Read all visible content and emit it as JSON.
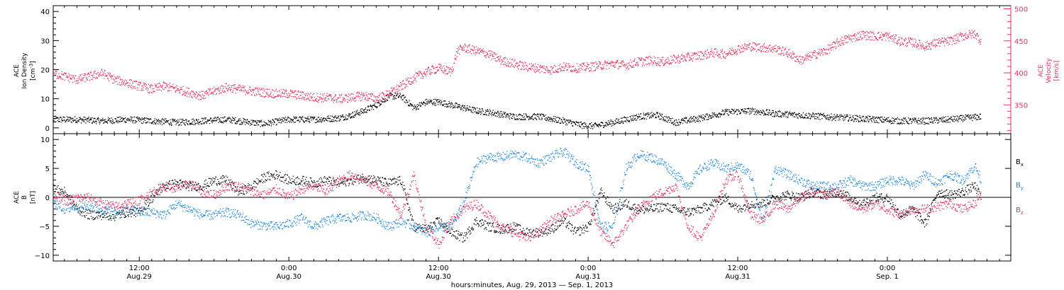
{
  "x_axis": {
    "title": "hours:minutes, Aug. 29, 2013 — Sep.  1, 2013",
    "ticks": [
      {
        "t_hours": 12,
        "time": "12:00",
        "date": "Aug.29"
      },
      {
        "t_hours": 24,
        "time": "0:00",
        "date": "Aug.30"
      },
      {
        "t_hours": 36,
        "time": "12:00",
        "date": "Aug.30"
      },
      {
        "t_hours": 48,
        "time": "0:00",
        "date": "Aug.31"
      },
      {
        "t_hours": 60,
        "time": "12:00",
        "date": "Aug.31"
      },
      {
        "t_hours": 72,
        "time": "0:00",
        "date": "Sep. 1"
      }
    ],
    "xlim_hours": [
      5.1,
      81.9
    ],
    "minor_tick_step_hours": 1
  },
  "chart_data": [
    {
      "type": "scatter",
      "panel": "top",
      "left_axis": {
        "label_lines": [
          "ACE",
          "Ion Density"
        ],
        "unit_prefix": "[cm",
        "unit_sup": "-3",
        "unit_suffix": "]",
        "ylim": [
          -2,
          42
        ],
        "ticks": [
          "0",
          "10",
          "20",
          "30",
          "40"
        ],
        "color": "#000000"
      },
      "right_axis": {
        "label_lines": [
          "ACE",
          "Velocity"
        ],
        "unit": "[km/s]",
        "ylim": [
          305,
          505
        ],
        "ticks": [
          "350",
          "400",
          "450",
          "500"
        ],
        "color": "#e8305c"
      },
      "x_unit": "hours since Aug. 29, 2013 00:00",
      "series": [
        {
          "key": "density",
          "axis": "left",
          "color": "#000000",
          "x": [
            5.1,
            7,
            9,
            11,
            13,
            15,
            17,
            19,
            21,
            22,
            24,
            26,
            28,
            29,
            30,
            31,
            32,
            33,
            34,
            35,
            36,
            37,
            38,
            39,
            40,
            42,
            44,
            46,
            47.5,
            48.5,
            50,
            52,
            53.5,
            55,
            57,
            59,
            61,
            63,
            65,
            67,
            69,
            71,
            73,
            75,
            77,
            79.5
          ],
          "y": [
            3,
            3,
            2.5,
            3,
            2.5,
            2,
            2.5,
            3,
            2,
            1.5,
            3,
            3,
            3.5,
            4.5,
            6,
            8,
            11,
            11,
            7,
            9,
            9,
            8,
            7,
            6,
            5.5,
            4,
            4,
            2.5,
            1,
            0.8,
            2,
            4,
            4.5,
            2,
            3.5,
            5.5,
            6,
            5,
            4.5,
            4,
            3.5,
            3,
            2.5,
            2.5,
            3,
            4
          ]
        },
        {
          "key": "velocity",
          "axis": "right",
          "color": "#e8305c",
          "x": [
            5.1,
            6,
            7,
            8,
            9,
            10,
            11,
            12,
            13,
            14,
            15,
            16,
            17,
            18,
            19,
            20,
            21,
            22,
            23,
            24,
            25,
            26,
            27,
            28,
            29,
            30,
            31,
            32,
            33,
            34,
            35,
            36,
            37,
            37.5,
            38,
            39,
            40,
            41,
            42,
            43,
            44,
            45,
            46,
            47,
            48,
            49,
            50,
            51,
            52,
            53,
            54,
            55,
            56,
            57,
            58,
            59,
            60,
            61,
            62,
            63,
            64,
            65,
            66,
            67,
            67.5,
            68,
            69,
            70,
            71,
            72,
            73,
            74,
            75,
            76,
            77,
            78,
            79,
            79.5
          ],
          "y": [
            400,
            395,
            390,
            395,
            400,
            390,
            385,
            380,
            375,
            380,
            375,
            370,
            365,
            372,
            378,
            375,
            372,
            370,
            368,
            368,
            365,
            362,
            362,
            360,
            362,
            365,
            360,
            368,
            380,
            392,
            402,
            408,
            402,
            435,
            440,
            435,
            430,
            420,
            415,
            410,
            408,
            405,
            410,
            408,
            410,
            412,
            415,
            412,
            418,
            420,
            418,
            422,
            425,
            428,
            432,
            430,
            438,
            442,
            440,
            438,
            432,
            420,
            428,
            435,
            440,
            448,
            455,
            460,
            458,
            458,
            450,
            448,
            442,
            448,
            450,
            458,
            462,
            450
          ]
        }
      ]
    },
    {
      "type": "scatter",
      "panel": "bottom",
      "axis": {
        "label_lines": [
          "ACE",
          "B"
        ],
        "unit": "[nT]",
        "ylim": [
          -11,
          11
        ],
        "ticks": [
          "10",
          "5",
          "0",
          "−5",
          "−10"
        ],
        "zero_line": true
      },
      "x_unit": "hours since Aug. 29, 2013 00:00",
      "legend": [
        {
          "base": "B",
          "sub": "x",
          "color": "#000000"
        },
        {
          "base": "B",
          "sub": "y",
          "color": "#1e88e5"
        },
        {
          "base": "B",
          "sub": "z",
          "color": "#e8305c"
        }
      ],
      "series": [
        {
          "key": "Bx",
          "color": "#000000",
          "x": [
            5.1,
            6,
            7,
            8,
            9,
            10,
            11,
            12,
            13,
            14,
            15,
            16,
            17,
            18,
            19,
            20,
            21,
            22,
            23,
            24,
            25,
            26,
            27,
            28,
            29,
            30,
            31,
            32,
            33,
            34,
            35,
            36,
            37,
            38,
            39,
            40,
            41,
            42,
            43,
            44,
            45,
            46,
            47,
            48,
            49,
            50,
            51,
            52,
            53,
            54,
            55,
            56,
            57,
            58,
            59,
            60,
            61,
            62,
            63,
            64,
            65,
            66,
            67,
            68,
            69,
            70,
            71,
            72,
            73,
            74,
            75,
            76,
            77,
            78,
            79,
            79.5
          ],
          "y": [
            1.5,
            1,
            -2,
            -3,
            -3,
            -3.2,
            -2.5,
            -2.5,
            0,
            2,
            2.5,
            2,
            2,
            3,
            3,
            1,
            2,
            3.5,
            4,
            3,
            3,
            2.5,
            3,
            2.5,
            3,
            3.5,
            3,
            2.5,
            3,
            -5,
            -5.5,
            -4,
            -6,
            -7,
            -4,
            -5,
            -5.5,
            -5,
            -6,
            -6,
            -5.5,
            -4,
            -6,
            -5,
            1,
            -2,
            -1,
            -2,
            -2,
            -1.5,
            -2,
            -2.5,
            -2,
            -1,
            0,
            -2,
            -1,
            -1,
            0,
            0.5,
            0,
            1,
            0.5,
            1,
            0,
            -1,
            0,
            0,
            -3,
            -2,
            -4.5,
            1,
            0.5,
            1,
            2,
            0
          ]
        },
        {
          "key": "By",
          "color": "#1e88e5",
          "x": [
            5.1,
            6,
            7,
            8,
            9,
            10,
            11,
            12,
            13,
            14,
            15,
            16,
            17,
            18,
            19,
            20,
            21,
            22,
            23,
            24,
            25,
            26,
            27,
            28,
            29,
            30,
            31,
            32,
            33,
            34,
            35,
            36,
            37,
            38,
            39,
            40,
            41,
            42,
            43,
            44,
            45,
            46,
            47,
            48,
            49,
            50,
            51,
            52,
            53,
            54,
            55,
            56,
            57,
            58,
            59,
            60,
            61,
            62,
            63,
            64,
            65,
            66,
            67,
            68,
            69,
            70,
            71,
            72,
            73,
            74,
            75,
            76,
            77,
            78,
            79,
            79.5
          ],
          "y": [
            -1,
            -2,
            -1.5,
            -1.5,
            -2,
            -2.5,
            -2,
            -2.5,
            -2.5,
            -3,
            -1,
            -2,
            -3,
            -3,
            -2.5,
            -3,
            -4.5,
            -4.8,
            -5,
            -4.5,
            -3.5,
            -5,
            -4,
            -3.5,
            -3.5,
            -3,
            -3.5,
            -5,
            -4,
            -5,
            -6,
            -5,
            -5,
            -1,
            6,
            7,
            7,
            7.5,
            7,
            6,
            7,
            8,
            6,
            5,
            -5,
            -5,
            5,
            7.5,
            7,
            6,
            4,
            2,
            5,
            6,
            5,
            5.5,
            4,
            -4,
            5,
            4,
            3,
            2,
            2,
            2,
            3,
            2,
            2,
            3,
            3,
            2,
            4,
            2.5,
            4,
            3,
            5.5,
            3
          ]
        },
        {
          "key": "Bz",
          "color": "#e8305c",
          "x": [
            5.1,
            6,
            7,
            8,
            9,
            10,
            11,
            12,
            13,
            14,
            15,
            16,
            17,
            18,
            19,
            20,
            21,
            22,
            23,
            24,
            25,
            26,
            27,
            28,
            29,
            30,
            31,
            32,
            33,
            34,
            35,
            36,
            37,
            38,
            39,
            40,
            41,
            42,
            43,
            44,
            45,
            46,
            47,
            48,
            49,
            50,
            51,
            52,
            53,
            54,
            55,
            56,
            57,
            58,
            59,
            60,
            61,
            62,
            63,
            64,
            65,
            66,
            67,
            68,
            69,
            70,
            71,
            72,
            73,
            74,
            75,
            76,
            77,
            78,
            79,
            79.5
          ],
          "y": [
            0.5,
            -0.5,
            0,
            0,
            -1,
            -1.5,
            -1,
            -0.5,
            1,
            2,
            1.5,
            2.5,
            1,
            0.5,
            2,
            2,
            1,
            0.5,
            1.5,
            0,
            1.5,
            2,
            1,
            3,
            4,
            3,
            2,
            1,
            -3,
            4,
            -5,
            -8,
            -4,
            -2,
            -1,
            -3,
            -5,
            -6,
            -7,
            -6,
            -4,
            -3,
            -2,
            -1,
            -6,
            -8,
            -5,
            -2,
            0,
            1,
            2,
            -5,
            -7,
            -3,
            3,
            4,
            -3,
            -4,
            -1,
            -2,
            0,
            1,
            0.5,
            1,
            -1,
            -2,
            -1,
            -2,
            -3,
            -2,
            -2,
            -1.5,
            -1,
            -2,
            -1,
            1
          ]
        }
      ]
    }
  ]
}
